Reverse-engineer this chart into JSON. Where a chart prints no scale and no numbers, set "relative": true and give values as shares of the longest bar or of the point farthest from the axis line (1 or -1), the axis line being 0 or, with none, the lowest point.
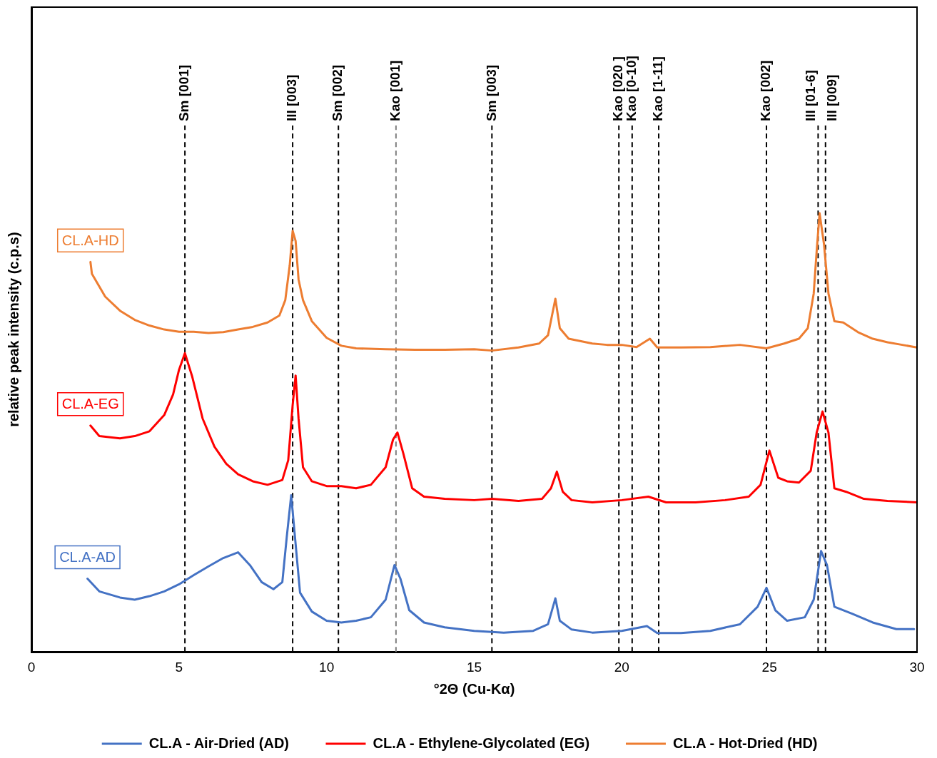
{
  "chart_data": {
    "type": "line",
    "xlabel": "°2Θ (Cu-Kα)",
    "ylabel": "relative peak intensity (c.p.s)",
    "relative": true,
    "xlim": [
      0,
      30
    ],
    "xticks": [
      0,
      5,
      10,
      15,
      20,
      25,
      30
    ],
    "grid": false,
    "legend": "bottom",
    "marker": "none",
    "line_style": "solid",
    "series": [
      {
        "name": "CL.A - Air-Dried (AD)",
        "color": "#4472c4",
        "x": [
          1.9,
          2.3,
          3,
          3.5,
          4,
          4.5,
          5,
          5.5,
          6,
          6.5,
          7,
          7.4,
          7.8,
          8.2,
          8.5,
          8.65,
          8.8,
          8.95,
          9.1,
          9.5,
          10,
          10.5,
          11,
          11.5,
          12,
          12.3,
          12.5,
          12.8,
          13.3,
          14,
          15,
          16,
          17,
          17.5,
          17.75,
          17.9,
          18.3,
          19,
          20,
          20.85,
          21.2,
          22,
          23,
          24,
          24.6,
          24.9,
          25.2,
          25.6,
          26.2,
          26.5,
          26.75,
          26.95,
          27.2,
          27.8,
          28.5,
          29.3,
          29.9
        ],
        "values": [
          0.167,
          0.138,
          0.124,
          0.119,
          0.127,
          0.138,
          0.154,
          0.175,
          0.195,
          0.214,
          0.227,
          0.198,
          0.159,
          0.143,
          0.159,
          0.262,
          0.357,
          0.246,
          0.135,
          0.092,
          0.071,
          0.067,
          0.071,
          0.079,
          0.119,
          0.198,
          0.167,
          0.095,
          0.067,
          0.056,
          0.048,
          0.044,
          0.048,
          0.063,
          0.122,
          0.071,
          0.051,
          0.044,
          0.048,
          0.059,
          0.043,
          0.043,
          0.048,
          0.063,
          0.103,
          0.146,
          0.095,
          0.071,
          0.079,
          0.119,
          0.23,
          0.198,
          0.103,
          0.087,
          0.067,
          0.052,
          0.052
        ]
      },
      {
        "name": "CL.A - Ethylene-Glycolated (EG)",
        "color": "#ff0000",
        "x": [
          2,
          2.3,
          3,
          3.5,
          4,
          4.5,
          4.8,
          5,
          5.2,
          5.45,
          5.8,
          6.2,
          6.6,
          7,
          7.5,
          8,
          8.5,
          8.7,
          8.85,
          8.95,
          9.05,
          9.2,
          9.5,
          10,
          10.5,
          11,
          11.5,
          12,
          12.25,
          12.4,
          12.6,
          12.9,
          13.3,
          14,
          15,
          15.6,
          16.5,
          17.3,
          17.6,
          17.8,
          18,
          18.3,
          19,
          20,
          20.9,
          21.5,
          22.5,
          23.5,
          24.3,
          24.7,
          25,
          25.3,
          25.6,
          26,
          26.4,
          26.6,
          26.8,
          27,
          27.2,
          27.6,
          28.2,
          29,
          30
        ],
        "values": [
          0.516,
          0.492,
          0.487,
          0.492,
          0.503,
          0.54,
          0.587,
          0.643,
          0.681,
          0.627,
          0.532,
          0.468,
          0.429,
          0.405,
          0.389,
          0.381,
          0.392,
          0.437,
          0.563,
          0.63,
          0.532,
          0.421,
          0.389,
          0.378,
          0.378,
          0.373,
          0.381,
          0.421,
          0.484,
          0.5,
          0.452,
          0.373,
          0.354,
          0.349,
          0.346,
          0.349,
          0.344,
          0.349,
          0.373,
          0.411,
          0.365,
          0.346,
          0.341,
          0.346,
          0.354,
          0.341,
          0.341,
          0.346,
          0.354,
          0.381,
          0.459,
          0.397,
          0.389,
          0.386,
          0.413,
          0.5,
          0.548,
          0.5,
          0.373,
          0.365,
          0.349,
          0.344,
          0.341
        ]
      },
      {
        "name": "CL.A - Hot-Dried (HD)",
        "color": "#ed7d31",
        "x": [
          2,
          2.05,
          2.5,
          3,
          3.5,
          4,
          4.5,
          5,
          5.5,
          6,
          6.5,
          7,
          7.5,
          8,
          8.4,
          8.6,
          8.75,
          8.85,
          8.95,
          9.05,
          9.2,
          9.5,
          10,
          10.5,
          11,
          12,
          13,
          14,
          15,
          15.6,
          16.5,
          17.2,
          17.5,
          17.75,
          17.9,
          18.2,
          19,
          19.5,
          20,
          20.5,
          20.95,
          21.2,
          22,
          23,
          24,
          24.9,
          25.5,
          26,
          26.3,
          26.5,
          26.6,
          26.7,
          26.85,
          27,
          27.2,
          27.5,
          28,
          28.5,
          29,
          29.5,
          30
        ],
        "values": [
          0.889,
          0.862,
          0.81,
          0.778,
          0.757,
          0.744,
          0.735,
          0.73,
          0.73,
          0.727,
          0.729,
          0.735,
          0.741,
          0.751,
          0.767,
          0.802,
          0.881,
          0.96,
          0.937,
          0.849,
          0.802,
          0.754,
          0.716,
          0.698,
          0.692,
          0.69,
          0.689,
          0.689,
          0.69,
          0.687,
          0.694,
          0.703,
          0.722,
          0.805,
          0.738,
          0.714,
          0.703,
          0.7,
          0.7,
          0.695,
          0.714,
          0.694,
          0.694,
          0.695,
          0.7,
          0.692,
          0.703,
          0.714,
          0.738,
          0.817,
          0.913,
          1,
          0.929,
          0.817,
          0.754,
          0.751,
          0.729,
          0.714,
          0.706,
          0.7,
          0.694
        ]
      }
    ],
    "ref_lines": [
      {
        "axis": "x",
        "value": 5.2,
        "label": "Sm [001]",
        "color": "#000000",
        "line_style": "dashed"
      },
      {
        "axis": "x",
        "value": 8.85,
        "label": "Ill [003]",
        "color": "#000000",
        "line_style": "dashed"
      },
      {
        "axis": "x",
        "value": 10.4,
        "label": "Sm [002]",
        "color": "#000000",
        "line_style": "dashed"
      },
      {
        "axis": "x",
        "value": 12.35,
        "label": "Kao [001]",
        "color": "#808080",
        "line_style": "dashed"
      },
      {
        "axis": "x",
        "value": 15.6,
        "label": "Sm [003]",
        "color": "#000000",
        "line_style": "dashed"
      },
      {
        "axis": "x",
        "value": 19.9,
        "label": "Kao [020 ]",
        "color": "#000000",
        "line_style": "dashed"
      },
      {
        "axis": "x",
        "value": 20.35,
        "label": "Kao [0-10]",
        "color": "#000000",
        "line_style": "dashed"
      },
      {
        "axis": "x",
        "value": 21.25,
        "label": "Kao [1-11]",
        "color": "#000000",
        "line_style": "dashed"
      },
      {
        "axis": "x",
        "value": 24.9,
        "label": "Kao [002]",
        "color": "#000000",
        "line_style": "dashed"
      },
      {
        "axis": "x",
        "value": 26.65,
        "label": "Ill [01-6]",
        "color": "#000000",
        "line_style": "dashed"
      },
      {
        "axis": "x",
        "value": 26.9,
        "label": "Ill [009]",
        "color": "#000000",
        "line_style": "dashed"
      }
    ],
    "annotations": [
      "CL.A-AD",
      "CL.A-EG",
      "CL.A-HD"
    ]
  }
}
